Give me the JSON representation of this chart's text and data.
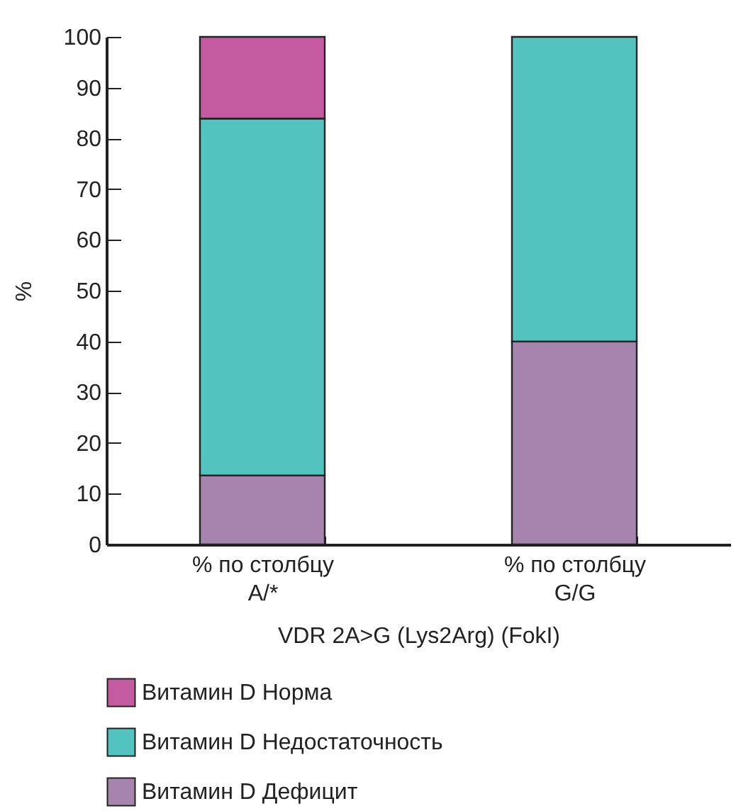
{
  "chart_data": {
    "type": "bar",
    "stacked": true,
    "ylabel": "%",
    "xlabel": "VDR 2A>G (Lys2Arg) (FokI)",
    "categories": [
      "% по столбцу\nA/*",
      "% по столбцу\nG/G"
    ],
    "series": [
      {
        "name": "Витамин D Дефицит",
        "color": "#a684ad",
        "values": [
          13.6,
          40
        ]
      },
      {
        "name": "Витамин D Недостаточность",
        "color": "#53c3c0",
        "values": [
          70.3,
          60
        ]
      },
      {
        "name": "Витамин D Норма",
        "color": "#c45a9f",
        "values": [
          16.1,
          null
        ]
      }
    ],
    "ylim": [
      0,
      100
    ],
    "yticks": [
      0,
      10,
      20,
      30,
      40,
      50,
      60,
      70,
      80,
      90,
      100
    ],
    "grid": false,
    "legend": "bottom"
  }
}
